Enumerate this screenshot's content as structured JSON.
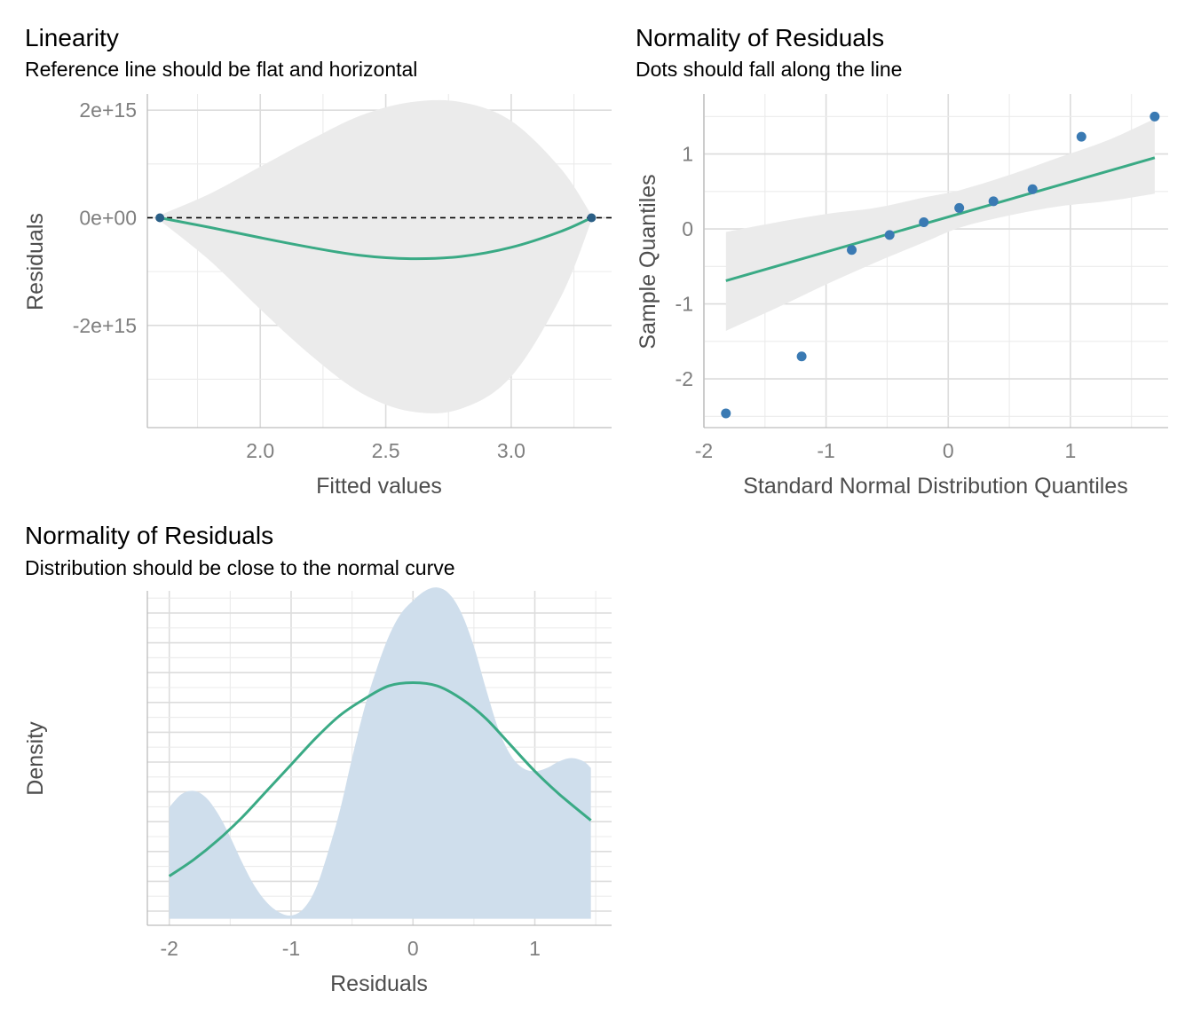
{
  "colors": {
    "line": "#3aaa85",
    "point": "#3a7ab3",
    "ci_band": "#ebebeb",
    "density_fill": "#cfdeec",
    "reference": "#000000"
  },
  "chart_data": [
    {
      "type": "scatter",
      "title": "Linearity",
      "subtitle": "Reference line should be flat and horizontal",
      "xlabel": "Fitted values",
      "ylabel": "Residuals",
      "xlim": [
        1.55,
        3.4
      ],
      "ylim": [
        -3900000000000000.0,
        2300000000000000.0
      ],
      "x_ticks": [
        2.0,
        2.5,
        3.0
      ],
      "x_tick_labels": [
        "2.0",
        "2.5",
        "3.0"
      ],
      "y_ticks": [
        2000000000000000.0,
        0,
        -2000000000000000.0
      ],
      "y_tick_labels": [
        "2e+15",
        "0e+00",
        "-2e+15"
      ],
      "points": [
        {
          "x": 1.6,
          "y": 0
        },
        {
          "x": 3.32,
          "y": 0
        }
      ],
      "reference_line": {
        "y": 0,
        "style": "dashed"
      },
      "smooth_line": {
        "x": [
          1.6,
          1.8,
          2.0,
          2.2,
          2.4,
          2.6,
          2.8,
          3.0,
          3.2,
          3.32
        ],
        "y": [
          0,
          -180000000000000.0,
          -370000000000000.0,
          -550000000000000.0,
          -700000000000000.0,
          -760000000000000.0,
          -720000000000000.0,
          -550000000000000.0,
          -250000000000000.0,
          0
        ]
      },
      "confidence_band": {
        "x": [
          1.6,
          1.8,
          2.0,
          2.2,
          2.4,
          2.6,
          2.8,
          3.0,
          3.2,
          3.32
        ],
        "upper": [
          50000000000000.0,
          450000000000000.0,
          950000000000000.0,
          1450000000000000.0,
          1900000000000000.0,
          2150000000000000.0,
          2150000000000000.0,
          1800000000000000.0,
          900000000000000.0,
          50000000000000.0
        ],
        "lower": [
          -50000000000000.0,
          -800000000000000.0,
          -1700000000000000.0,
          -2550000000000000.0,
          -3250000000000000.0,
          -3600000000000000.0,
          -3550000000000000.0,
          -2950000000000000.0,
          -1450000000000000.0,
          -50000000000000.0
        ]
      },
      "grid": true
    },
    {
      "type": "scatter",
      "title": "Normality of Residuals",
      "subtitle": "Dots should fall along the line",
      "xlabel": "Standard Normal Distribution Quantiles",
      "ylabel": "Sample Quantiles",
      "xlim": [
        -2.0,
        1.8
      ],
      "ylim": [
        -2.65,
        1.8
      ],
      "x_ticks": [
        -2,
        -1,
        0,
        1
      ],
      "x_tick_labels": [
        "-2",
        "-1",
        "0",
        "1"
      ],
      "y_ticks": [
        1,
        0,
        -1,
        -2
      ],
      "y_tick_labels": [
        "1",
        "0",
        "-1",
        "-2"
      ],
      "points": [
        {
          "x": -1.82,
          "y": -2.46
        },
        {
          "x": -1.2,
          "y": -1.7
        },
        {
          "x": -0.79,
          "y": -0.28
        },
        {
          "x": -0.48,
          "y": -0.08
        },
        {
          "x": -0.2,
          "y": 0.09
        },
        {
          "x": 0.09,
          "y": 0.28
        },
        {
          "x": 0.37,
          "y": 0.37
        },
        {
          "x": 0.69,
          "y": 0.53
        },
        {
          "x": 1.09,
          "y": 1.23
        },
        {
          "x": 1.69,
          "y": 1.5
        }
      ],
      "fit_line": {
        "x": [
          -1.82,
          1.69
        ],
        "y": [
          -0.69,
          0.95
        ]
      },
      "confidence_band": {
        "x": [
          -1.82,
          -1.4,
          -1.0,
          -0.6,
          -0.2,
          0.1,
          0.5,
          0.9,
          1.3,
          1.69
        ],
        "upper": [
          -0.04,
          0.09,
          0.2,
          0.28,
          0.42,
          0.52,
          0.72,
          0.95,
          1.18,
          1.47
        ],
        "lower": [
          -1.36,
          -1.05,
          -0.74,
          -0.45,
          -0.18,
          0.02,
          0.18,
          0.3,
          0.37,
          0.47
        ]
      },
      "grid": true
    },
    {
      "type": "area",
      "title": "Normality of Residuals",
      "subtitle": "Distribution should be close to the normal curve",
      "xlabel": "Residuals",
      "ylabel": "Density",
      "xlim": [
        -2.18,
        1.63
      ],
      "ylim": [
        -0.02,
        1.0
      ],
      "x_ticks": [
        -2,
        -1,
        0,
        1
      ],
      "x_tick_labels": [
        "-2",
        "-1",
        "0",
        "1"
      ],
      "density": {
        "x": [
          -2.0,
          -1.9,
          -1.8,
          -1.7,
          -1.6,
          -1.5,
          -1.4,
          -1.3,
          -1.2,
          -1.1,
          -1.0,
          -0.9,
          -0.8,
          -0.7,
          -0.6,
          -0.5,
          -0.4,
          -0.3,
          -0.2,
          -0.1,
          0.0,
          0.1,
          0.2,
          0.3,
          0.4,
          0.5,
          0.6,
          0.7,
          0.8,
          0.9,
          1.0,
          1.1,
          1.2,
          1.3,
          1.4,
          1.46
        ],
        "y": [
          0.34,
          0.38,
          0.39,
          0.37,
          0.32,
          0.25,
          0.17,
          0.1,
          0.05,
          0.02,
          0.01,
          0.03,
          0.09,
          0.2,
          0.33,
          0.49,
          0.64,
          0.76,
          0.86,
          0.93,
          0.97,
          1.0,
          1.01,
          0.99,
          0.93,
          0.83,
          0.7,
          0.58,
          0.5,
          0.46,
          0.45,
          0.46,
          0.48,
          0.49,
          0.48,
          0.46
        ]
      },
      "normal_curve": {
        "x": [
          -2.0,
          -1.8,
          -1.6,
          -1.4,
          -1.2,
          -1.0,
          -0.8,
          -0.6,
          -0.4,
          -0.2,
          0.0,
          0.2,
          0.4,
          0.6,
          0.8,
          1.0,
          1.2,
          1.46
        ],
        "y": [
          0.13,
          0.18,
          0.24,
          0.31,
          0.39,
          0.47,
          0.55,
          0.62,
          0.67,
          0.71,
          0.72,
          0.71,
          0.67,
          0.61,
          0.53,
          0.45,
          0.38,
          0.3
        ]
      },
      "grid": true
    }
  ]
}
